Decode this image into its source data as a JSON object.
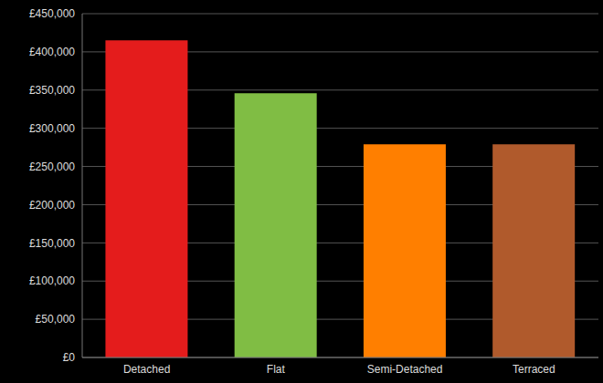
{
  "chart_data": {
    "type": "bar",
    "categories": [
      "Detached",
      "Flat",
      "Semi-Detached",
      "Terraced"
    ],
    "values": [
      415000,
      346000,
      279000,
      279000
    ],
    "colors": [
      "#e41c1c",
      "#80bd44",
      "#ff7f00",
      "#b05a2c"
    ],
    "ylim": [
      0,
      450000
    ],
    "yticks": [
      {
        "value": 0,
        "label": "£0"
      },
      {
        "value": 50000,
        "label": "£50,000"
      },
      {
        "value": 100000,
        "label": "£100,000"
      },
      {
        "value": 150000,
        "label": "£150,000"
      },
      {
        "value": 200000,
        "label": "£200,000"
      },
      {
        "value": 250000,
        "label": "£250,000"
      },
      {
        "value": 300000,
        "label": "£300,000"
      },
      {
        "value": 350000,
        "label": "£350,000"
      },
      {
        "value": 400000,
        "label": "£400,000"
      },
      {
        "value": 450000,
        "label": "£450,000"
      }
    ],
    "grid": true
  }
}
